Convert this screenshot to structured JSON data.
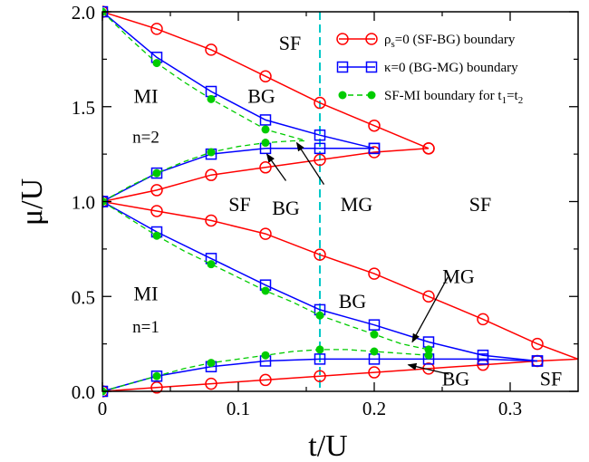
{
  "chart_data": {
    "type": "line",
    "xlabel": "t/U",
    "ylabel": "μ/U",
    "xlim": [
      0,
      0.35
    ],
    "ylim": [
      0,
      2.0
    ],
    "x_ticks": [
      {
        "value": 0,
        "label": "0"
      },
      {
        "value": 0.1,
        "label": "0.1"
      },
      {
        "value": 0.2,
        "label": "0.2"
      },
      {
        "value": 0.3,
        "label": "0.3"
      }
    ],
    "y_ticks": [
      {
        "value": 0,
        "label": "0.0"
      },
      {
        "value": 0.5,
        "label": "0.5"
      },
      {
        "value": 1.0,
        "label": "1.0"
      },
      {
        "value": 1.5,
        "label": "1.5"
      },
      {
        "value": 2.0,
        "label": "2.0"
      }
    ],
    "grid": false,
    "vertical_line": {
      "x": 0.16,
      "color": "#00c8c8",
      "style": "dashed"
    },
    "legend": {
      "position": "top-right",
      "entries": [
        {
          "series": 0,
          "name_main": "ρ",
          "name_sub": "s",
          "name_rest": "=0 (SF-BG) boundary"
        },
        {
          "series": 1,
          "name_main": "κ=0 (BG-MG) boundary",
          "name_sub": "",
          "name_rest": ""
        },
        {
          "series": 2,
          "name_main": "SF-MI boundary for t",
          "name_sub": "1",
          "name_rest": "=t",
          "name_sub2": "2"
        }
      ]
    },
    "series": [
      {
        "name": "ρs=0 (SF-BG) boundary",
        "color": "#ff0000",
        "marker": "circle",
        "line": "solid",
        "curves": [
          {
            "x": [
              0,
              0.04,
              0.08,
              0.12,
              0.16,
              0.2,
              0.24
            ],
            "y": [
              2.0,
              1.91,
              1.8,
              1.66,
              1.52,
              1.4,
              1.28
            ]
          },
          {
            "x": [
              0,
              0.04,
              0.08,
              0.12,
              0.16,
              0.2,
              0.24
            ],
            "y": [
              1.0,
              1.06,
              1.14,
              1.18,
              1.22,
              1.26,
              1.28
            ]
          },
          {
            "x": [
              0,
              0.04,
              0.08,
              0.12,
              0.16,
              0.2,
              0.24,
              0.28,
              0.32,
              0.35
            ],
            "y": [
              1.0,
              0.95,
              0.9,
              0.83,
              0.72,
              0.62,
              0.5,
              0.38,
              0.25,
              0.17
            ],
            "markers": [
              0,
              1,
              2,
              3,
              4,
              5,
              6,
              7,
              8
            ]
          },
          {
            "x": [
              0,
              0.04,
              0.08,
              0.12,
              0.16,
              0.2,
              0.24,
              0.28,
              0.32,
              0.35
            ],
            "y": [
              0.0,
              0.02,
              0.04,
              0.06,
              0.08,
              0.1,
              0.12,
              0.14,
              0.16,
              0.17
            ],
            "markers": [
              0,
              1,
              2,
              3,
              4,
              5,
              6,
              7,
              8
            ]
          }
        ]
      },
      {
        "name": "κ=0 (BG-MG) boundary",
        "color": "#0000ff",
        "marker": "square",
        "line": "solid",
        "curves": [
          {
            "x": [
              0,
              0.04,
              0.08,
              0.12,
              0.16,
              0.2
            ],
            "y": [
              2.0,
              1.76,
              1.58,
              1.43,
              1.35,
              1.28
            ]
          },
          {
            "x": [
              0,
              0.04,
              0.08,
              0.12,
              0.16,
              0.2
            ],
            "y": [
              1.0,
              1.15,
              1.25,
              1.28,
              1.28,
              1.28
            ]
          },
          {
            "x": [
              0,
              0.04,
              0.08,
              0.12,
              0.16,
              0.2,
              0.24,
              0.28,
              0.32
            ],
            "y": [
              1.0,
              0.84,
              0.7,
              0.56,
              0.43,
              0.35,
              0.26,
              0.19,
              0.16
            ]
          },
          {
            "x": [
              0,
              0.04,
              0.08,
              0.12,
              0.16,
              0.2,
              0.24,
              0.28,
              0.32
            ],
            "y": [
              0.0,
              0.08,
              0.13,
              0.16,
              0.17,
              0.17,
              0.17,
              0.17,
              0.16
            ]
          }
        ]
      },
      {
        "name": "SF-MI boundary for t1=t2",
        "color": "#00cc00",
        "marker": "dot",
        "line": "dashed",
        "curves": [
          {
            "x": [
              0,
              0.02,
              0.04,
              0.06,
              0.08,
              0.1,
              0.12,
              0.14,
              0.15
            ],
            "y": [
              2.0,
              1.86,
              1.73,
              1.63,
              1.54,
              1.46,
              1.38,
              1.34,
              1.32
            ],
            "markers": [
              0,
              2,
              4,
              6
            ]
          },
          {
            "x": [
              0,
              0.02,
              0.04,
              0.06,
              0.08,
              0.1,
              0.12,
              0.14,
              0.15
            ],
            "y": [
              1.0,
              1.08,
              1.15,
              1.21,
              1.26,
              1.29,
              1.31,
              1.32,
              1.32
            ],
            "markers": [
              0,
              2,
              4,
              6
            ]
          },
          {
            "x": [
              0,
              0.02,
              0.04,
              0.06,
              0.08,
              0.1,
              0.12,
              0.14,
              0.16,
              0.18,
              0.2,
              0.22,
              0.24
            ],
            "y": [
              1.0,
              0.91,
              0.82,
              0.74,
              0.67,
              0.6,
              0.53,
              0.47,
              0.4,
              0.35,
              0.3,
              0.25,
              0.22
            ],
            "markers": [
              0,
              2,
              4,
              6,
              8,
              10,
              12
            ]
          },
          {
            "x": [
              0,
              0.02,
              0.04,
              0.06,
              0.08,
              0.1,
              0.12,
              0.14,
              0.16,
              0.18,
              0.2,
              0.22,
              0.24
            ],
            "y": [
              0.0,
              0.04,
              0.08,
              0.12,
              0.15,
              0.17,
              0.19,
              0.21,
              0.22,
              0.22,
              0.21,
              0.2,
              0.19
            ],
            "markers": [
              0,
              2,
              4,
              6,
              8,
              10,
              12
            ]
          }
        ]
      }
    ],
    "annotations": [
      {
        "text": "SF",
        "x": 0.138,
        "y": 1.8,
        "size": 22
      },
      {
        "text": "MI",
        "x": 0.032,
        "y": 1.52,
        "size": 22
      },
      {
        "text": "n=2",
        "x": 0.032,
        "y": 1.31,
        "size": 19
      },
      {
        "text": "BG",
        "x": 0.117,
        "y": 1.52,
        "size": 22
      },
      {
        "text": "SF",
        "x": 0.101,
        "y": 0.95,
        "size": 22
      },
      {
        "text": "BG",
        "x": 0.135,
        "y": 0.93,
        "size": 22
      },
      {
        "text": "MG",
        "x": 0.187,
        "y": 0.95,
        "size": 22
      },
      {
        "text": "SF",
        "x": 0.278,
        "y": 0.95,
        "size": 22
      },
      {
        "text": "MI",
        "x": 0.032,
        "y": 0.48,
        "size": 22
      },
      {
        "text": "n=1",
        "x": 0.032,
        "y": 0.31,
        "size": 19
      },
      {
        "text": "BG",
        "x": 0.184,
        "y": 0.44,
        "size": 22
      },
      {
        "text": "MG",
        "x": 0.262,
        "y": 0.57,
        "size": 22
      },
      {
        "text": "BG",
        "x": 0.26,
        "y": 0.03,
        "size": 22
      },
      {
        "text": "SF",
        "x": 0.33,
        "y": 0.03,
        "size": 22
      }
    ],
    "arrows": [
      {
        "from": [
          0.135,
          1.11
        ],
        "to": [
          0.121,
          1.25
        ]
      },
      {
        "from": [
          0.163,
          1.09
        ],
        "to": [
          0.143,
          1.31
        ]
      },
      {
        "from": [
          0.254,
          0.6
        ],
        "to": [
          0.228,
          0.26
        ]
      },
      {
        "from": [
          0.255,
          0.09
        ],
        "to": [
          0.225,
          0.14
        ]
      }
    ]
  }
}
